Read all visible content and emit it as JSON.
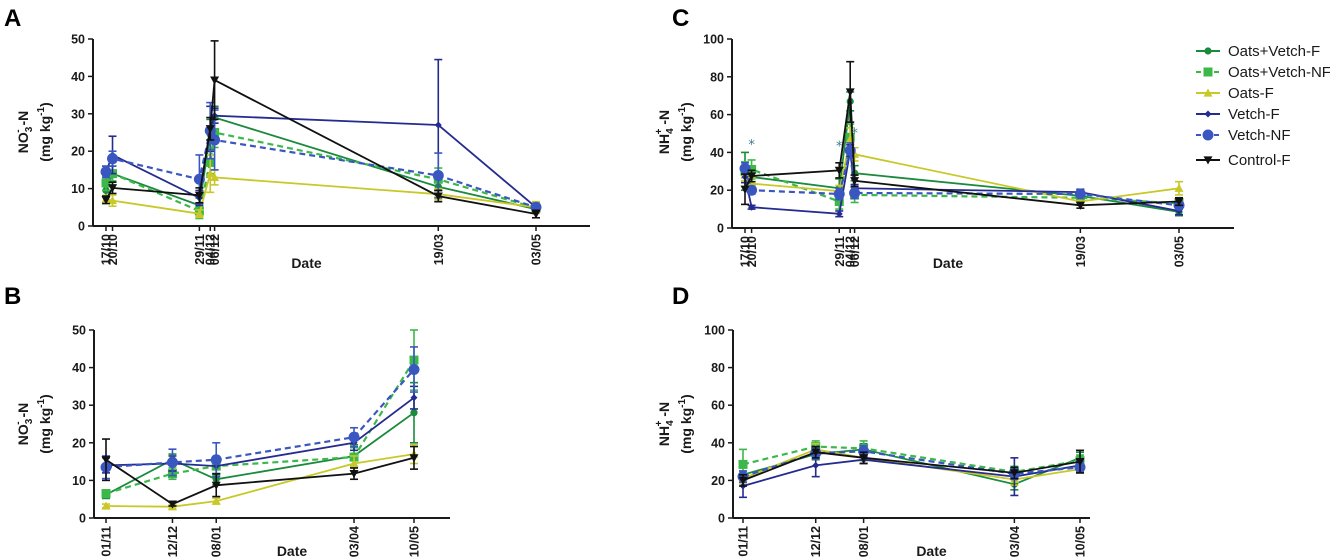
{
  "figure": {
    "legend": [
      {
        "name": "Oats+Vetch-F",
        "color": "#1a8a3c",
        "dash": false,
        "marker": "circle-small"
      },
      {
        "name": "Oats+Vetch-NF",
        "color": "#3cb84a",
        "dash": true,
        "marker": "square"
      },
      {
        "name": "Oats-F",
        "color": "#c8c828",
        "dash": false,
        "marker": "triangle-up"
      },
      {
        "name": "Vetch-F",
        "color": "#252b8f",
        "dash": false,
        "marker": "diamond"
      },
      {
        "name": "Vetch-NF",
        "color": "#3a56c0",
        "dash": true,
        "marker": "circle"
      },
      {
        "name": "Control-F",
        "color": "#111111",
        "dash": false,
        "marker": "triangle-down"
      }
    ]
  },
  "chart_data": [
    {
      "panel": "A",
      "type": "line",
      "ylabel_line1": "NO3- -N",
      "ylabel_line1_parts": [
        "NO",
        "3",
        "-",
        " -N"
      ],
      "ylabel_line2": "(mg kg-1)",
      "ylabel_line2_parts": [
        "(mg kg",
        "-1",
        ")"
      ],
      "xlabel": "Date",
      "ylim": [
        0,
        50
      ],
      "yticks": [
        0,
        10,
        20,
        30,
        40,
        50
      ],
      "x_days": [
        0,
        3,
        43,
        48,
        50,
        153,
        198
      ],
      "categories": [
        "17/10",
        "20/10",
        "29/11",
        "04/12",
        "06/12",
        "19/03",
        "03/05"
      ],
      "x_range_days": [
        -13,
        225
      ],
      "series": [
        {
          "name": "Oats+Vetch-F",
          "values": [
            9.5,
            14,
            5.5,
            24.5,
            29,
            10.5,
            4.5
          ],
          "err": [
            1.5,
            2,
            2,
            4,
            3,
            2,
            1
          ]
        },
        {
          "name": "Oats+Vetch-NF",
          "values": [
            11.5,
            14,
            4,
            17,
            25,
            12.5,
            4.8
          ],
          "err": [
            2,
            3,
            2,
            3,
            4,
            3,
            1
          ]
        },
        {
          "name": "Oats-F",
          "values": [
            7.2,
            6.8,
            3.3,
            14,
            13,
            8.5,
            5
          ],
          "err": [
            1,
            1.5,
            1,
            5,
            2,
            1.5,
            1.5
          ]
        },
        {
          "name": "Vetch-F",
          "values": [
            14.5,
            19,
            7.5,
            26,
            29.5,
            27,
            5
          ],
          "err": [
            1.5,
            5,
            2,
            6,
            2,
            17.5,
            1
          ]
        },
        {
          "name": "Vetch-NF",
          "values": [
            14.5,
            18,
            12.5,
            25.5,
            23,
            13.5,
            5
          ],
          "err": [
            1.5,
            2,
            6.5,
            7.5,
            8,
            6,
            1
          ]
        },
        {
          "name": "Control-F",
          "values": [
            7,
            10.2,
            8.2,
            26,
            39,
            8,
            3.2
          ],
          "err": [
            1,
            1.5,
            2,
            3,
            10.5,
            1.5,
            1
          ]
        }
      ],
      "annotations": []
    },
    {
      "panel": "B",
      "type": "line",
      "ylabel_line1": "NO3- -N",
      "ylabel_line1_parts": [
        "NO",
        "3",
        "-",
        " -N"
      ],
      "ylabel_line2": "(mg kg-1)",
      "ylabel_line2_parts": [
        "(mg kg",
        "-1",
        ")"
      ],
      "xlabel": "Date",
      "ylim": [
        0,
        50
      ],
      "yticks": [
        0,
        10,
        20,
        30,
        40,
        50
      ],
      "x_days": [
        0,
        41,
        68,
        153,
        190
      ],
      "categories": [
        "01/11",
        "12/12",
        "08/01",
        "03/04",
        "10/05"
      ],
      "x_range_days": [
        -4,
        196
      ],
      "series": [
        {
          "name": "Oats+Vetch-F",
          "values": [
            6.2,
            15.5,
            10.3,
            16.5,
            28
          ],
          "err": [
            1,
            1.5,
            1.5,
            3,
            8
          ]
        },
        {
          "name": "Oats+Vetch-NF",
          "values": [
            6.5,
            11.8,
            13.8,
            16.2,
            42
          ],
          "err": [
            1,
            1.5,
            2.5,
            2.5,
            8
          ]
        },
        {
          "name": "Oats-F",
          "values": [
            3.2,
            3,
            4.5,
            14.5,
            17
          ],
          "err": [
            0.5,
            0.5,
            0.8,
            2,
            2.5
          ]
        },
        {
          "name": "Vetch-F",
          "values": [
            14,
            14.5,
            13.8,
            20,
            32
          ],
          "err": [
            2,
            2,
            2,
            2,
            3
          ]
        },
        {
          "name": "Vetch-NF",
          "values": [
            13.5,
            14.8,
            15.5,
            21.5,
            39.5
          ],
          "err": [
            3,
            3.5,
            4.5,
            2.5,
            6
          ]
        },
        {
          "name": "Control-F",
          "values": [
            15.5,
            3.7,
            8.7,
            11.8,
            16
          ],
          "err": [
            5.5,
            0.5,
            3,
            1.5,
            3
          ]
        }
      ],
      "annotations": []
    },
    {
      "panel": "C",
      "type": "line",
      "ylabel_line1": "NH4+ -N",
      "ylabel_line1_parts": [
        "NH",
        "4",
        "+",
        " -N"
      ],
      "ylabel_line2": "(mg kg-1)",
      "ylabel_line2_parts": [
        "(mg kg",
        "-1",
        ")"
      ],
      "xlabel": "Date",
      "ylim": [
        0,
        100
      ],
      "yticks": [
        0,
        20,
        40,
        60,
        80,
        100
      ],
      "x_days": [
        0,
        3,
        43,
        48,
        50,
        153,
        198
      ],
      "categories": [
        "17/10",
        "20/10",
        "29/11",
        "04/12",
        "06/12",
        "19/03",
        "03/05"
      ],
      "x_range_days": [
        -13,
        225
      ],
      "series": [
        {
          "name": "Oats+Vetch-F",
          "values": [
            30,
            27,
            21,
            67,
            29,
            17,
            8.5
          ],
          "err": [
            10,
            4,
            5,
            5,
            4,
            2,
            2
          ]
        },
        {
          "name": "Oats+Vetch-NF",
          "values": [
            30,
            31,
            14,
            48,
            17.5,
            16,
            13
          ],
          "err": [
            5,
            5,
            4,
            7,
            4,
            2,
            3
          ]
        },
        {
          "name": "Oats-F",
          "values": [
            28,
            23.5,
            19.5,
            47,
            39,
            14,
            21
          ],
          "err": [
            3,
            3,
            3,
            6,
            3.5,
            2,
            3.5
          ]
        },
        {
          "name": "Vetch-F",
          "values": [
            27,
            11,
            7.5,
            41,
            21,
            19,
            9
          ],
          "err": [
            3,
            1,
            1.5,
            3,
            2,
            1.5,
            2
          ]
        },
        {
          "name": "Vetch-NF",
          "values": [
            31.5,
            20,
            18,
            41,
            18.5,
            18,
            12
          ],
          "err": [
            3,
            2,
            3,
            4,
            3,
            2,
            2
          ]
        },
        {
          "name": "Control-F",
          "values": [
            20.5,
            27.5,
            30.5,
            72,
            25,
            12,
            14
          ],
          "err": [
            8,
            3,
            4,
            16,
            3,
            1.5,
            2
          ]
        }
      ],
      "annotations": [
        {
          "text": "*",
          "x_day": 3,
          "y": 44
        },
        {
          "text": "*",
          "x_day": 43,
          "y": 43
        },
        {
          "text": "*",
          "x_day": 50,
          "y": 50
        }
      ]
    },
    {
      "panel": "D",
      "type": "line",
      "ylabel_line1": "NH4+ -N",
      "ylabel_line1_parts": [
        "NH",
        "4",
        "+",
        " -N"
      ],
      "ylabel_line2": "(mg kg-1)",
      "ylabel_line2_parts": [
        "(mg kg",
        "-1",
        ")"
      ],
      "xlabel": "Date",
      "ylim": [
        0,
        100
      ],
      "yticks": [
        0,
        20,
        40,
        60,
        80,
        100
      ],
      "x_days": [
        0,
        41,
        68,
        153,
        190
      ],
      "categories": [
        "01/11",
        "12/12",
        "08/01",
        "03/04",
        "10/05"
      ],
      "x_range_days": [
        -4,
        196
      ],
      "series": [
        {
          "name": "Oats+Vetch-F",
          "values": [
            23,
            34,
            36.5,
            18,
            32
          ],
          "err": [
            2,
            3,
            3,
            3,
            3
          ]
        },
        {
          "name": "Oats+Vetch-NF",
          "values": [
            28.5,
            38,
            37,
            24.5,
            30.5
          ],
          "err": [
            8,
            3,
            4,
            3,
            3
          ]
        },
        {
          "name": "Oats-F",
          "values": [
            21,
            36.5,
            32,
            20.5,
            26
          ],
          "err": [
            3,
            3,
            3,
            3,
            2
          ]
        },
        {
          "name": "Vetch-F",
          "values": [
            17,
            28,
            31,
            22,
            28
          ],
          "err": [
            6,
            6,
            2,
            10,
            3
          ]
        },
        {
          "name": "Vetch-NF",
          "values": [
            22,
            34.5,
            35.5,
            23.5,
            27
          ],
          "err": [
            3,
            3,
            3,
            3,
            3
          ]
        },
        {
          "name": "Control-F",
          "values": [
            20,
            35,
            32,
            24,
            30
          ],
          "err": [
            3,
            3,
            3,
            3,
            6
          ]
        }
      ],
      "annotations": []
    }
  ]
}
